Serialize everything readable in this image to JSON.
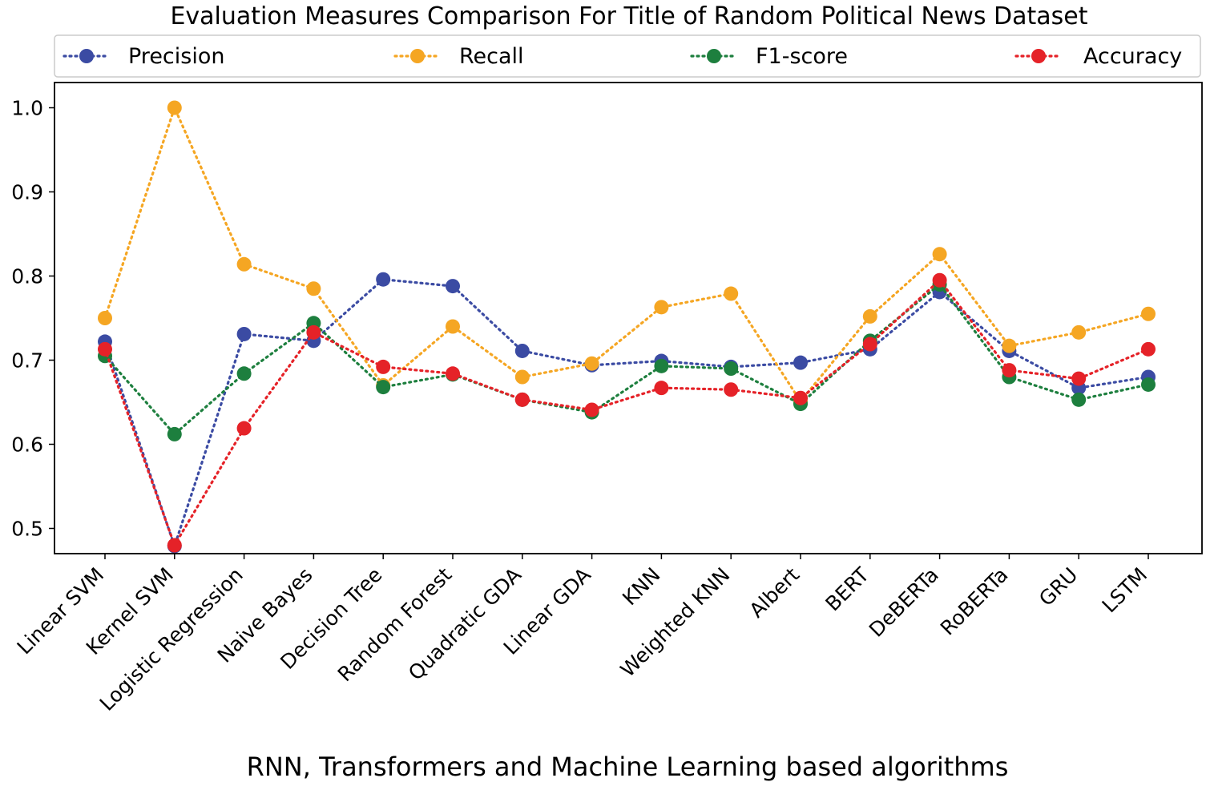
{
  "chart_data": {
    "type": "line",
    "title": "Evaluation Measures Comparison For Title of Random Political News Dataset",
    "xlabel": "RNN, Transformers and Machine Learning based algorithms",
    "ylabel": "",
    "ylim": [
      0.47,
      1.03
    ],
    "yticks": [
      "0.5",
      "0.6",
      "0.7",
      "0.8",
      "0.9",
      "1.0"
    ],
    "ytick_values": [
      0.5,
      0.6,
      0.7,
      0.8,
      0.9,
      1.0
    ],
    "legend_position": "top",
    "categories": [
      "Linear SVM",
      "Kernel SVM",
      "Logistic Regression",
      "Naive Bayes",
      "Decision Tree",
      "Random Forest",
      "Quadratic GDA",
      "Linear GDA",
      "KNN",
      "Weighted KNN",
      "Albert",
      "BERT",
      "DeBERTa",
      "RoBERTa",
      "GRU",
      "LSTM"
    ],
    "series": [
      {
        "name": "Precision",
        "color": "#3b4ba3",
        "values": [
          0.722,
          0.479,
          0.731,
          0.723,
          0.796,
          0.788,
          0.711,
          0.694,
          0.699,
          0.692,
          0.697,
          0.713,
          0.781,
          0.711,
          0.667,
          0.68
        ]
      },
      {
        "name": "Recall",
        "color": "#f5a623",
        "values": [
          0.75,
          1.0,
          0.814,
          0.785,
          0.67,
          0.74,
          0.68,
          0.696,
          0.763,
          0.779,
          0.651,
          0.752,
          0.826,
          0.717,
          0.733,
          0.755
        ]
      },
      {
        "name": "F1-score",
        "color": "#1d7f3e",
        "values": [
          0.705,
          0.612,
          0.684,
          0.744,
          0.668,
          0.683,
          0.653,
          0.638,
          0.693,
          0.69,
          0.648,
          0.723,
          0.79,
          0.68,
          0.653,
          0.671
        ]
      },
      {
        "name": "Accuracy",
        "color": "#e52228",
        "values": [
          0.713,
          0.48,
          0.619,
          0.733,
          0.692,
          0.684,
          0.653,
          0.641,
          0.667,
          0.665,
          0.655,
          0.719,
          0.795,
          0.688,
          0.678,
          0.713
        ]
      }
    ]
  }
}
